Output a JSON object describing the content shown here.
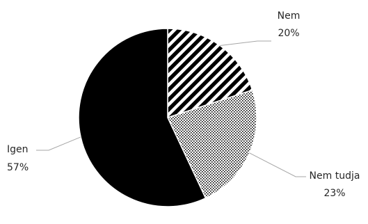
{
  "chart_data": {
    "type": "pie",
    "title": "",
    "slices": [
      {
        "label": "Nem",
        "percent_label": "20%",
        "value": 20,
        "pattern": "diagonal-stripes"
      },
      {
        "label": "Nem tudja",
        "percent_label": "23%",
        "value": 23,
        "pattern": "dots"
      },
      {
        "label": "Igen",
        "percent_label": "57%",
        "value": 57,
        "pattern": "solid-black"
      }
    ],
    "start": "12 o'clock",
    "direction": "clockwise",
    "legend": "none",
    "colors": {
      "ink": "#000000",
      "background": "#ffffff",
      "label_text": "#262626",
      "leader_line": "#a6a6a6"
    }
  }
}
